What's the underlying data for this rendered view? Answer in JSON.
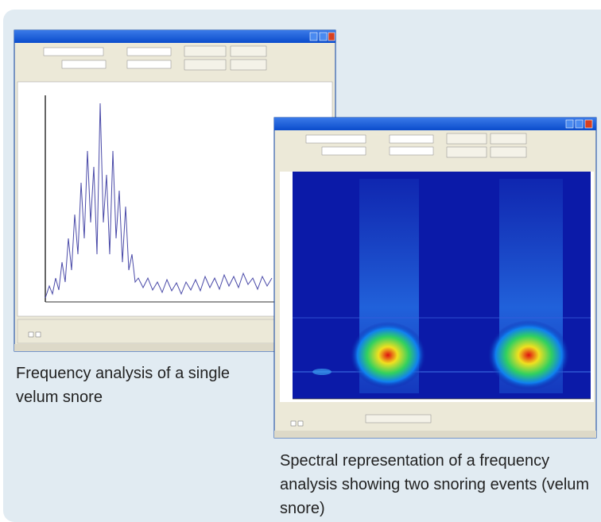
{
  "captions": [
    "Frequency analysis of a single velum snore",
    "Spectral representation of a frequency analysis showing two snoring events (velum snore)"
  ]
}
